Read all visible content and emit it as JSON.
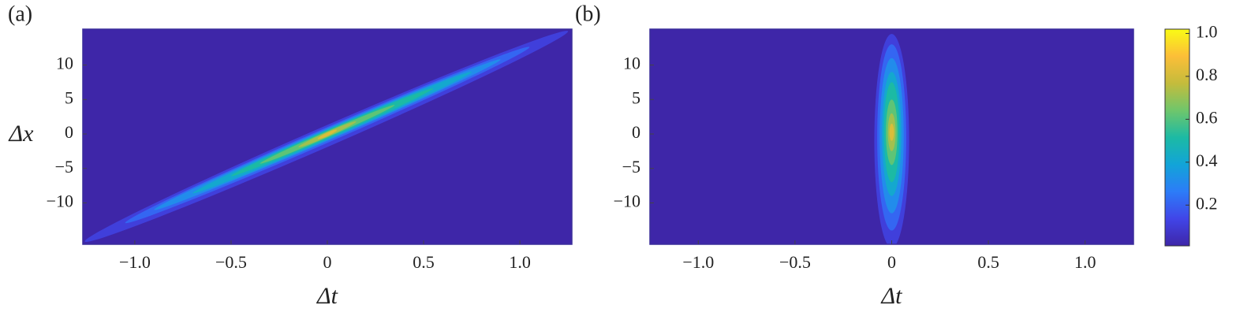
{
  "chart_data": [
    {
      "type": "contour",
      "panel_label": "(a)",
      "xlabel": "Δt",
      "ylabel": "Δx",
      "xlim": [
        -1.27,
        1.27
      ],
      "ylim": [
        -16,
        15.2
      ],
      "xticks": [
        {
          "value": -1.0,
          "label": "−1.0"
        },
        {
          "value": -0.5,
          "label": "−0.5"
        },
        0,
        0.5,
        {
          "value": 1.0,
          "label": "1.0"
        }
      ],
      "yticks": [
        {
          "value": -10,
          "label": "−10"
        },
        {
          "value": -5,
          "label": "−5"
        },
        0,
        5,
        10
      ],
      "contours": [
        {
          "level": 0.1,
          "from": [
            -1.26,
            -15.6
          ],
          "to": [
            1.25,
            14.9
          ],
          "x_width": 3.2
        },
        {
          "level": 0.2,
          "from": [
            -1.05,
            -12.9
          ],
          "to": [
            1.05,
            12.6
          ],
          "x_width": 2.3
        },
        {
          "level": 0.3,
          "from": [
            -0.9,
            -11.0
          ],
          "to": [
            0.9,
            10.8
          ],
          "x_width": 1.8
        },
        {
          "level": 0.4,
          "from": [
            -0.7,
            -8.6
          ],
          "to": [
            0.75,
            9.0
          ],
          "x_width": 1.5
        },
        {
          "level": 0.5,
          "from": [
            -0.5,
            -6.1
          ],
          "to": [
            0.55,
            6.6
          ],
          "x_width": 1.2
        },
        {
          "level": 0.6,
          "from": [
            -0.35,
            -4.3
          ],
          "to": [
            0.35,
            4.2
          ],
          "x_width": 0.9
        },
        {
          "level": 0.7,
          "from": [
            -0.15,
            -1.9
          ],
          "to": [
            0.15,
            1.8
          ],
          "x_width": 0.7
        },
        {
          "level": 0.8,
          "from": [
            -0.05,
            -0.7
          ],
          "to": [
            0.05,
            0.6
          ],
          "x_width": 0.5
        }
      ]
    },
    {
      "type": "contour",
      "panel_label": "(b)",
      "xlabel": "Δt",
      "xlim": [
        -1.25,
        1.25
      ],
      "ylim": [
        -16,
        15.2
      ],
      "xticks": [
        {
          "value": -1.0,
          "label": "−1.0"
        },
        {
          "value": -0.5,
          "label": "−0.5"
        },
        0,
        0.5,
        {
          "value": 1.0,
          "label": "1.0"
        }
      ],
      "yticks": [
        {
          "value": -10,
          "label": "−10"
        },
        {
          "value": -5,
          "label": "−5"
        },
        0,
        5,
        10
      ],
      "contours": [
        {
          "level": 0.1,
          "t_range": [
            -0.09,
            0.09
          ],
          "x_range": [
            -16.5,
            14.5
          ]
        },
        {
          "level": 0.2,
          "t_range": [
            -0.075,
            0.075
          ],
          "x_range": [
            -14,
            13
          ]
        },
        {
          "level": 0.3,
          "t_range": [
            -0.062,
            0.062
          ],
          "x_range": [
            -11.5,
            11
          ]
        },
        {
          "level": 0.4,
          "t_range": [
            -0.05,
            0.05
          ],
          "x_range": [
            -9,
            9
          ]
        },
        {
          "level": 0.5,
          "t_range": [
            -0.04,
            0.04
          ],
          "x_range": [
            -7,
            7.5
          ]
        },
        {
          "level": 0.6,
          "t_range": [
            -0.03,
            0.03
          ],
          "x_range": [
            -4.5,
            5
          ]
        },
        {
          "level": 0.7,
          "t_range": [
            -0.02,
            0.02
          ],
          "x_range": [
            -2.5,
            3
          ]
        },
        {
          "level": 0.8,
          "t_range": [
            -0.012,
            0.012
          ],
          "x_range": [
            -1,
            1.5
          ]
        }
      ],
      "colorbar": {
        "lim": [
          0.01,
          1.02
        ],
        "ticks": [
          0.2,
          0.4,
          0.6,
          0.8,
          {
            "value": 1.0,
            "label": "1.0"
          }
        ],
        "colormap": [
          "#3e26a8",
          "#4145e8",
          "#2c7cf8",
          "#12a4d8",
          "#1cbaa4",
          "#6fc66b",
          "#c4bc3c",
          "#fcbe38",
          "#f9fb15"
        ]
      }
    }
  ]
}
